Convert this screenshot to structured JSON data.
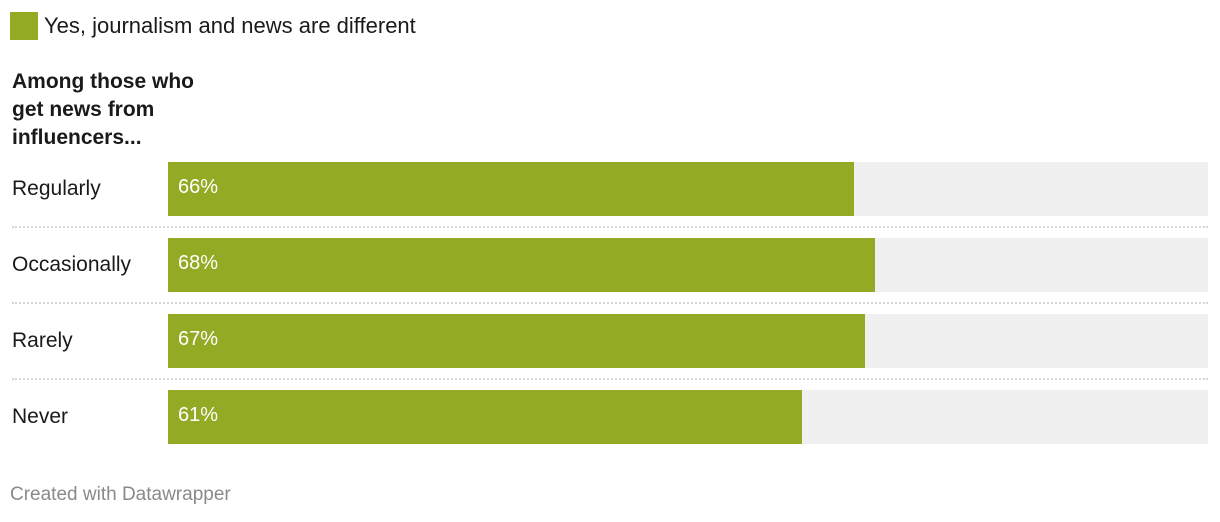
{
  "legend": {
    "label": "Yes, journalism and news are different",
    "color": "#93aa24"
  },
  "group_title": "Among those who get news from influencers...",
  "footer": "Created with Datawrapper",
  "chart_data": {
    "type": "bar",
    "orientation": "horizontal",
    "categories": [
      "Regularly",
      "Occasionally",
      "Rarely",
      "Never"
    ],
    "series": [
      {
        "name": "Yes, journalism and news are different",
        "values": [
          66,
          68,
          67,
          61
        ],
        "color": "#93aa24"
      }
    ],
    "value_labels": [
      "66%",
      "68%",
      "67%",
      "61%"
    ],
    "xlim": [
      0,
      100
    ],
    "grid": false,
    "legend_position": "top-left",
    "track_color": "#f0f0f0"
  }
}
